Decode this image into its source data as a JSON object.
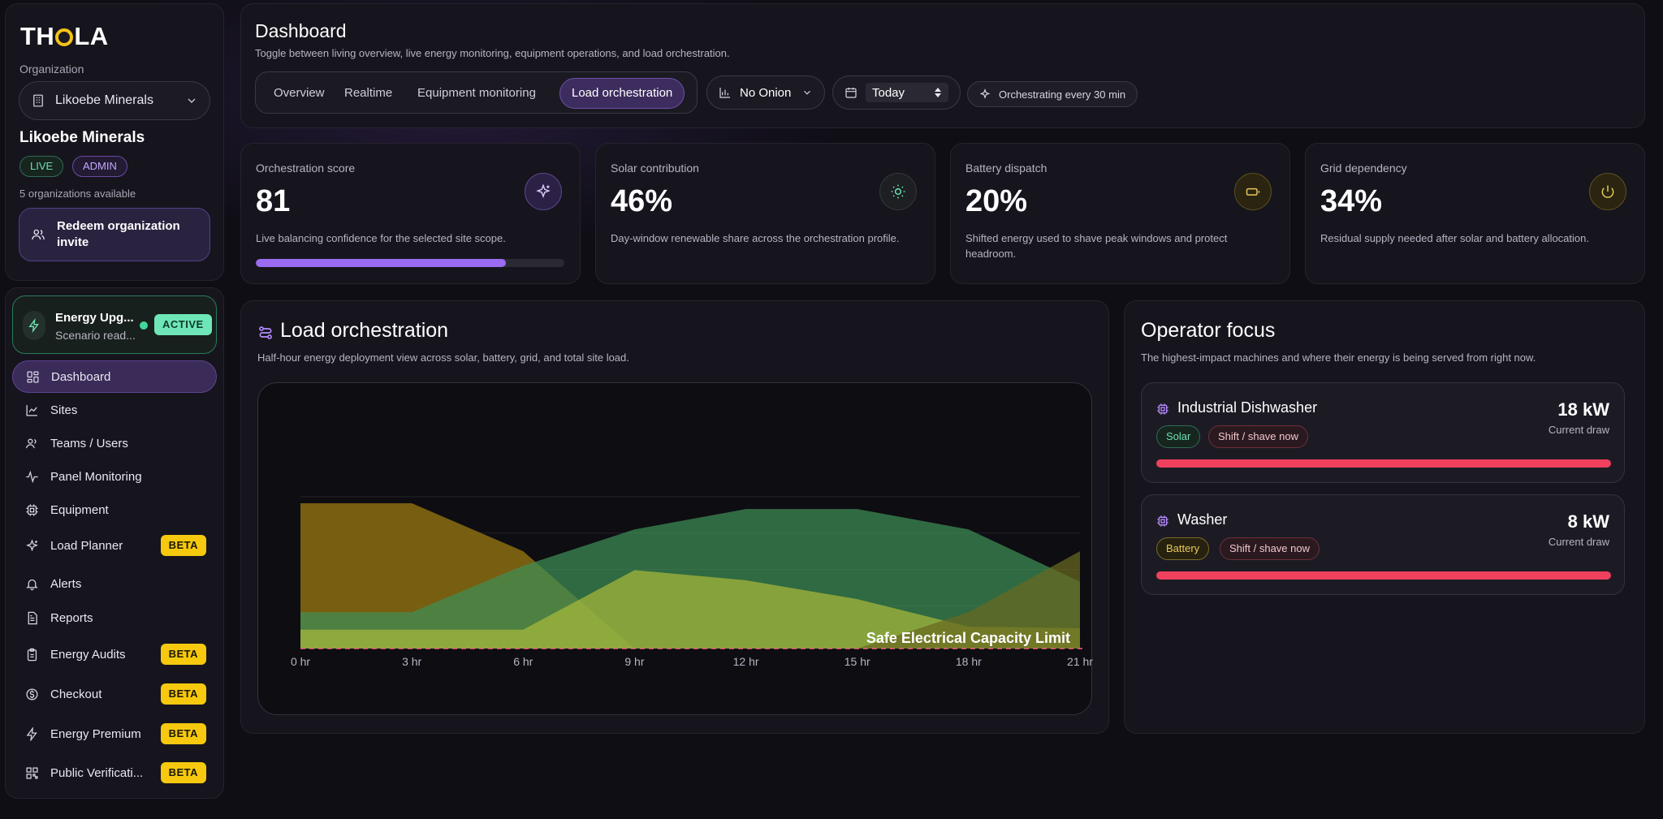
{
  "sidebar": {
    "logo": "THOLA",
    "org_label": "Organization",
    "org_selected": "Likoebe Minerals",
    "org_name": "Likoebe Minerals",
    "badges": [
      "LIVE",
      "ADMIN"
    ],
    "orgs_available": "5 organizations available",
    "redeem_label": "Redeem organization invite",
    "energy_card": {
      "title": "Energy Upg...",
      "subtitle": "Scenario read...",
      "status": "ACTIVE"
    },
    "nav": [
      {
        "label": "Dashboard",
        "icon": "grid-icon",
        "badge": ""
      },
      {
        "label": "Sites",
        "icon": "chart-icon",
        "badge": ""
      },
      {
        "label": "Teams / Users",
        "icon": "users-icon",
        "badge": ""
      },
      {
        "label": "Panel Monitoring",
        "icon": "pulse-icon",
        "badge": ""
      },
      {
        "label": "Equipment",
        "icon": "chip-icon",
        "badge": ""
      },
      {
        "label": "Load Planner",
        "icon": "sparkle-icon",
        "badge": "BETA"
      },
      {
        "label": "Alerts",
        "icon": "bell-icon",
        "badge": ""
      },
      {
        "label": "Reports",
        "icon": "document-icon",
        "badge": ""
      },
      {
        "label": "Energy Audits",
        "icon": "clipboard-icon",
        "badge": "BETA"
      },
      {
        "label": "Checkout",
        "icon": "dollar-icon",
        "badge": "BETA"
      },
      {
        "label": "Energy Premium",
        "icon": "bolt-icon",
        "badge": "BETA"
      },
      {
        "label": "Public Verificati...",
        "icon": "qr-icon",
        "badge": "BETA"
      }
    ]
  },
  "header": {
    "title": "Dashboard",
    "subtitle": "Toggle between living overview, live energy monitoring, equipment operations, and load orchestration.",
    "tabs": [
      "Overview",
      "Realtime",
      "Equipment monitoring",
      "Load orchestration"
    ],
    "active_tab": "Load orchestration",
    "site_select": "No Onion",
    "date_select": "Today",
    "orchestrating": "Orchestrating every 30 min"
  },
  "stats": [
    {
      "label": "Orchestration score",
      "value": "81",
      "desc": "Live balancing confidence for the selected site scope.",
      "progress": 0.81,
      "color": "#9b6cf2"
    },
    {
      "label": "Solar contribution",
      "value": "46%",
      "desc": "Day-window renewable share across the orchestration profile.",
      "color": "#6ee0b0"
    },
    {
      "label": "Battery dispatch",
      "value": "20%",
      "desc": "Shifted energy used to shave peak windows and protect headroom.",
      "color": "#e6c85a"
    },
    {
      "label": "Grid dependency",
      "value": "34%",
      "desc": "Residual supply needed after solar and battery allocation.",
      "color": "#e6c85a"
    }
  ],
  "load_orchestration": {
    "title": "Load orchestration",
    "subtitle": "Half-hour energy deployment view across solar, battery, grid, and total site load."
  },
  "chart_data": {
    "type": "area",
    "x": [
      "0 hr",
      "3 hr",
      "6 hr",
      "9 hr",
      "12 hr",
      "15 hr",
      "18 hr",
      "21 hr"
    ],
    "series": [
      {
        "values": [
          1.0,
          1.0,
          0.67,
          0.0,
          0.0,
          0.0,
          0.0,
          0.0
        ],
        "color": "#8a6d12"
      },
      {
        "values": [
          0.25,
          0.25,
          0.57,
          0.82,
          0.96,
          0.96,
          0.82,
          0.46
        ],
        "color": "#3f8f55"
      },
      {
        "values": [
          0.13,
          0.13,
          0.13,
          0.54,
          0.47,
          0.34,
          0.15,
          0.14
        ],
        "color": "#a8b83a"
      },
      {
        "values": [
          0.0,
          0.0,
          0.0,
          0.0,
          0.0,
          0.0,
          0.25,
          0.67
        ],
        "color": "#6a6a20"
      }
    ],
    "threshold_label": "Safe Electrical Capacity Limit",
    "xlabel": "",
    "ylabel": ""
  },
  "operator_focus": {
    "title": "Operator focus",
    "subtitle": "The highest-impact machines and where their energy is being served from right now.",
    "machines": [
      {
        "name": "Industrial Dishwasher",
        "kw": "18 kW",
        "draw_label": "Current draw",
        "source": "Solar",
        "action": "Shift / shave now"
      },
      {
        "name": "Washer",
        "kw": "8 kW",
        "draw_label": "Current draw",
        "source": "Battery",
        "action": "Shift / shave now"
      }
    ]
  }
}
